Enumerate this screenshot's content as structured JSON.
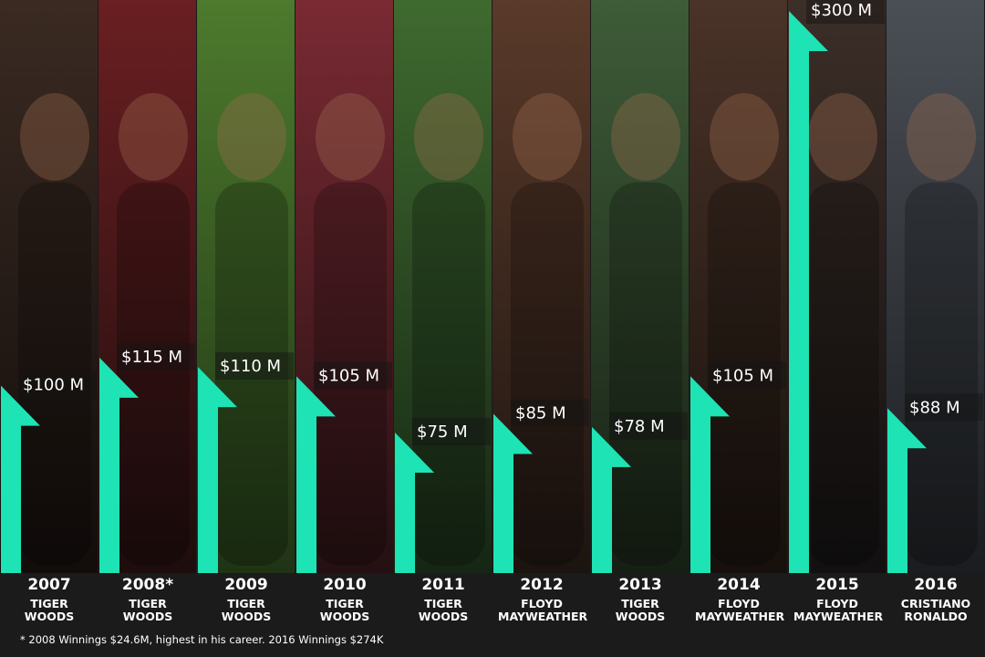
{
  "chart_data": {
    "type": "bar",
    "categories": [
      "2007",
      "2008*",
      "2009",
      "2010",
      "2011",
      "2012",
      "2013",
      "2014",
      "2015",
      "2016"
    ],
    "athletes": [
      "TIGER WOODS",
      "TIGER WOODS",
      "TIGER WOODS",
      "TIGER WOODS",
      "TIGER WOODS",
      "FLOYD MAYWEATHER",
      "TIGER WOODS",
      "FLOYD MAYWEATHER",
      "FLOYD MAYWEATHER",
      "CRISTIANO RONALDO"
    ],
    "values": [
      100,
      115,
      110,
      105,
      75,
      85,
      78,
      105,
      300,
      88
    ],
    "value_labels": [
      "$100 M",
      "$115 M",
      "$110 M",
      "$105 M",
      "$75 M",
      "$85 M",
      "$78 M",
      "$105 M",
      "$300 M",
      "$88 M"
    ],
    "color": "#1ee3b4",
    "ylim": [
      0,
      300
    ],
    "footnote": "* 2008 Winnings $24.6M, highest in his career. 2016 Winnings $274K"
  }
}
